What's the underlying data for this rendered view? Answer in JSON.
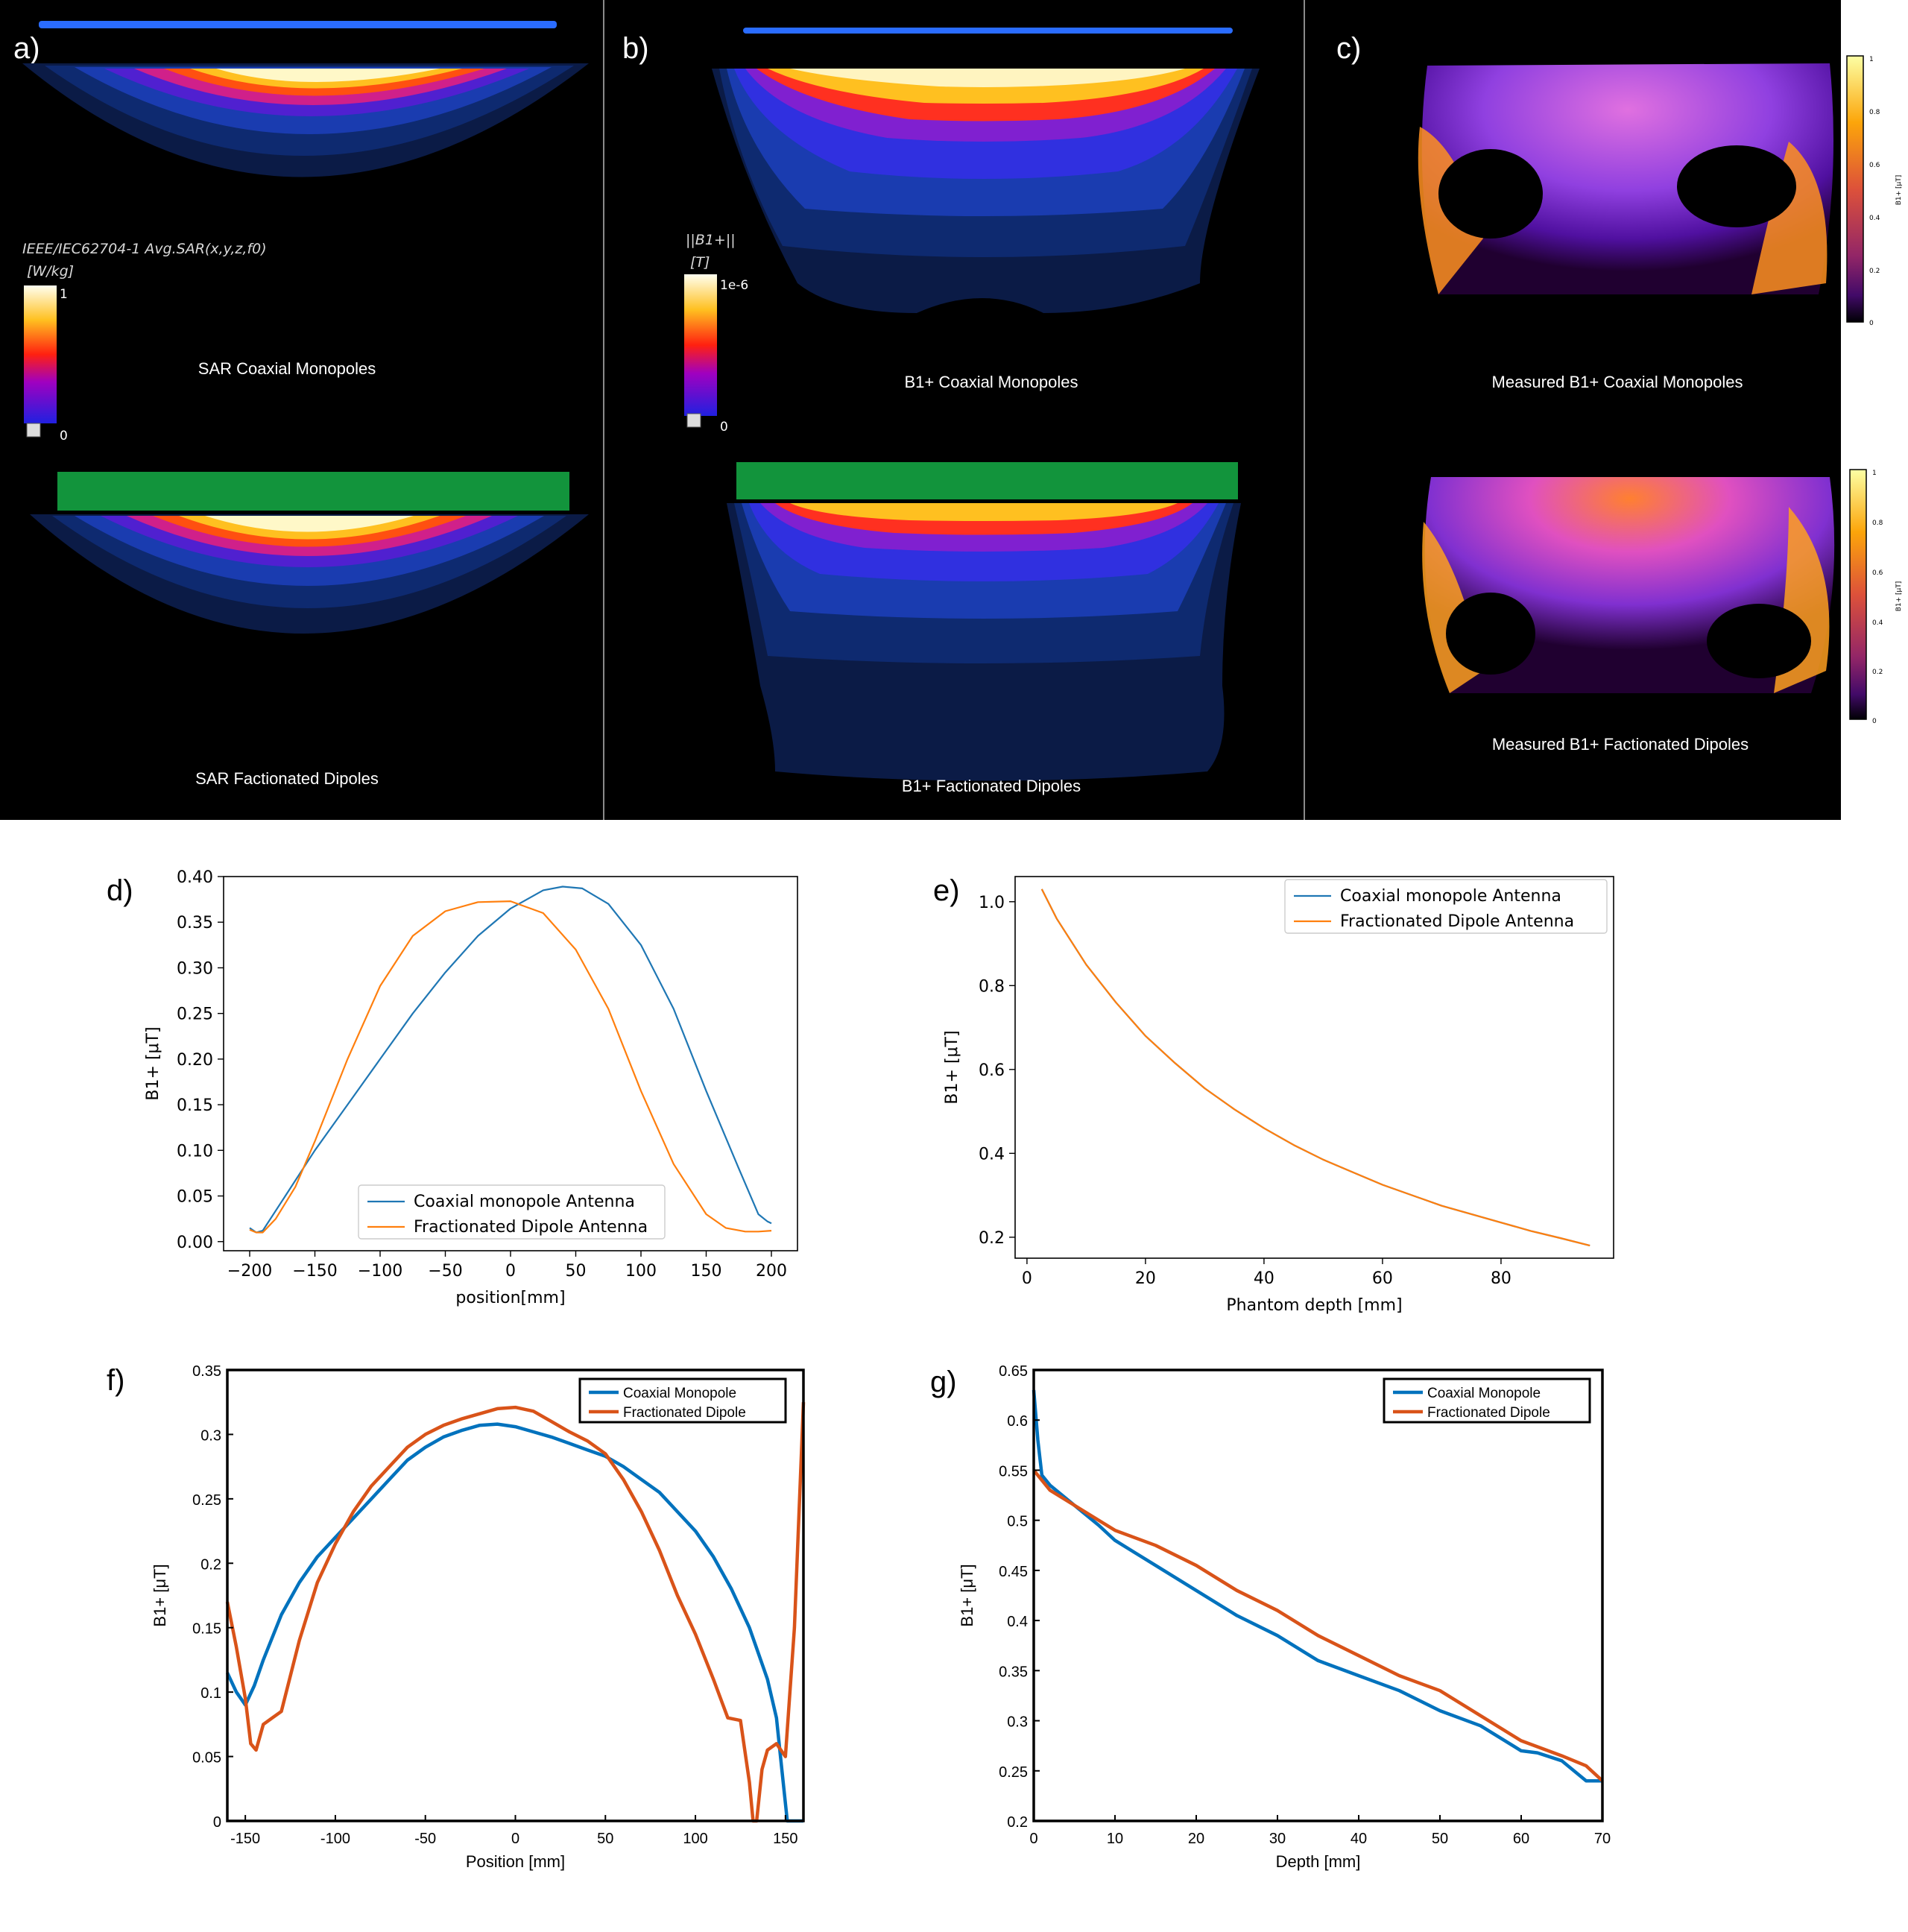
{
  "panels": {
    "a": {
      "label": "a)",
      "legend_title": "IEEE/IEC62704-1 Avg.SAR(x,y,z,f0)",
      "unit": "[W/kg]",
      "scale_max": "1",
      "scale_min": "0",
      "caption_top": "SAR Coaxial Monopoles",
      "caption_bottom": "SAR Factionated Dipoles"
    },
    "b": {
      "label": "b)",
      "legend_title": "||B1+||",
      "unit": "[T]",
      "scale_max": "1e-6",
      "scale_min": "0",
      "caption_top": "B1+ Coaxial Monopoles",
      "caption_bottom": "B1+ Factionated Dipoles"
    },
    "c": {
      "label": "c)",
      "caption_top": "Measured B1+ Coaxial Monopoles",
      "caption_bottom": "Measured B1+ Factionated Dipoles",
      "colorbar_ticks": [
        "1",
        "0.8",
        "0.6",
        "0.4",
        "0.2",
        "0"
      ],
      "colorbar_label": "B1+ [μT]"
    },
    "d": {
      "label": "d)"
    },
    "e": {
      "label": "e)"
    },
    "f": {
      "label": "f)"
    },
    "g": {
      "label": "g)"
    }
  },
  "colors": {
    "blue": "#1f77b4",
    "orange": "#ff7f0e",
    "matlab_blue": "#0072bd",
    "matlab_orange": "#d95319"
  },
  "chart_data": [
    {
      "id": "d",
      "type": "line",
      "xlabel": "position[mm]",
      "ylabel": "B1+ [μT]",
      "xlim": [
        -220,
        220
      ],
      "ylim": [
        -0.01,
        0.4
      ],
      "xticks": [
        -200,
        -150,
        -100,
        -50,
        0,
        50,
        100,
        150,
        200
      ],
      "xticklabels": [
        "−200",
        "−150",
        "−100",
        "−50",
        "0",
        "50",
        "100",
        "150",
        "200"
      ],
      "yticks": [
        0.0,
        0.05,
        0.1,
        0.15,
        0.2,
        0.25,
        0.3,
        0.35,
        0.4
      ],
      "yticklabels": [
        "0.00",
        "0.05",
        "0.10",
        "0.15",
        "0.20",
        "0.25",
        "0.30",
        "0.35",
        "0.40"
      ],
      "legend": "lower-center",
      "series": [
        {
          "name": "Coaxial monopole Antenna",
          "x": [
            -200,
            -195,
            -190,
            -175,
            -150,
            -125,
            -100,
            -75,
            -50,
            -25,
            0,
            25,
            40,
            55,
            75,
            100,
            125,
            150,
            175,
            190,
            197,
            200
          ],
          "y": [
            0.015,
            0.01,
            0.012,
            0.045,
            0.1,
            0.15,
            0.2,
            0.25,
            0.295,
            0.335,
            0.365,
            0.385,
            0.389,
            0.387,
            0.37,
            0.325,
            0.255,
            0.165,
            0.08,
            0.03,
            0.022,
            0.02
          ]
        },
        {
          "name": "Fractionated Dipole Antenna",
          "x": [
            -200,
            -195,
            -190,
            -180,
            -165,
            -150,
            -125,
            -100,
            -75,
            -50,
            -25,
            0,
            25,
            50,
            75,
            100,
            125,
            150,
            165,
            180,
            190,
            200
          ],
          "y": [
            0.013,
            0.01,
            0.01,
            0.025,
            0.06,
            0.11,
            0.2,
            0.28,
            0.335,
            0.362,
            0.372,
            0.373,
            0.36,
            0.32,
            0.255,
            0.165,
            0.085,
            0.03,
            0.015,
            0.011,
            0.011,
            0.012
          ]
        }
      ]
    },
    {
      "id": "e",
      "type": "line",
      "xlabel": "Phantom depth [mm]",
      "ylabel": "B1+ [μT]",
      "xlim": [
        -2,
        99
      ],
      "ylim": [
        0.15,
        1.06
      ],
      "xticks": [
        0,
        20,
        40,
        60,
        80
      ],
      "xticklabels": [
        "0",
        "20",
        "40",
        "60",
        "80"
      ],
      "yticks": [
        0.2,
        0.4,
        0.6,
        0.8,
        1.0
      ],
      "yticklabels": [
        "0.2",
        "0.4",
        "0.6",
        "0.8",
        "1.0"
      ],
      "legend": "top-right",
      "series": [
        {
          "name": "Coaxial monopole Antenna",
          "x": [
            2.5,
            5,
            10,
            15,
            20,
            25,
            30,
            35,
            40,
            45,
            50,
            55,
            60,
            65,
            70,
            75,
            80,
            85,
            90,
            95
          ],
          "y": [
            1.03,
            0.96,
            0.85,
            0.76,
            0.68,
            0.615,
            0.555,
            0.505,
            0.46,
            0.42,
            0.385,
            0.355,
            0.325,
            0.3,
            0.275,
            0.255,
            0.235,
            0.215,
            0.198,
            0.18
          ]
        },
        {
          "name": "Fractionated Dipole Antenna",
          "x": [
            2.5,
            5,
            10,
            15,
            20,
            25,
            30,
            35,
            40,
            45,
            50,
            55,
            60,
            65,
            70,
            75,
            80,
            85,
            90,
            95
          ],
          "y": [
            1.03,
            0.96,
            0.85,
            0.76,
            0.68,
            0.615,
            0.555,
            0.505,
            0.46,
            0.42,
            0.385,
            0.355,
            0.325,
            0.3,
            0.275,
            0.255,
            0.235,
            0.215,
            0.198,
            0.18
          ]
        }
      ]
    },
    {
      "id": "f",
      "type": "line",
      "xlabel": "Position [mm]",
      "ylabel": "B1+ [μT]",
      "xlim": [
        -160,
        160
      ],
      "ylim": [
        0,
        0.35
      ],
      "xticks": [
        -150,
        -100,
        -50,
        0,
        50,
        100,
        150
      ],
      "xticklabels": [
        "-150",
        "-100",
        "-50",
        "0",
        "50",
        "100",
        "150"
      ],
      "yticks": [
        0,
        0.05,
        0.1,
        0.15,
        0.2,
        0.25,
        0.3,
        0.35
      ],
      "yticklabels": [
        "0",
        "0.05",
        "0.1",
        "0.15",
        "0.2",
        "0.25",
        "0.3",
        "0.35"
      ],
      "legend": "top-right",
      "series": [
        {
          "name": "Coaxial Monopole",
          "x": [
            -160,
            -155,
            -150,
            -145,
            -140,
            -130,
            -120,
            -110,
            -100,
            -90,
            -80,
            -70,
            -60,
            -50,
            -40,
            -30,
            -20,
            -10,
            0,
            10,
            20,
            30,
            40,
            50,
            60,
            70,
            80,
            90,
            100,
            110,
            120,
            130,
            140,
            145,
            148,
            151,
            155,
            160
          ],
          "y": [
            0.115,
            0.1,
            0.09,
            0.105,
            0.125,
            0.16,
            0.185,
            0.205,
            0.22,
            0.235,
            0.25,
            0.265,
            0.28,
            0.29,
            0.298,
            0.303,
            0.307,
            0.308,
            0.306,
            0.302,
            0.298,
            0.293,
            0.288,
            0.283,
            0.275,
            0.265,
            0.255,
            0.24,
            0.225,
            0.205,
            0.18,
            0.15,
            0.11,
            0.08,
            0.04,
            0.0,
            0.0,
            0.0
          ]
        },
        {
          "name": "Fractionated Dipole",
          "x": [
            -160,
            -155,
            -150,
            -147,
            -144,
            -140,
            -135,
            -130,
            -120,
            -110,
            -100,
            -90,
            -80,
            -70,
            -60,
            -50,
            -40,
            -30,
            -20,
            -10,
            0,
            10,
            20,
            30,
            40,
            50,
            60,
            70,
            80,
            90,
            100,
            110,
            118,
            125,
            130,
            132,
            134,
            137,
            140,
            145,
            150,
            155,
            160
          ],
          "y": [
            0.17,
            0.135,
            0.095,
            0.06,
            0.055,
            0.075,
            0.08,
            0.085,
            0.14,
            0.185,
            0.215,
            0.24,
            0.26,
            0.275,
            0.29,
            0.3,
            0.307,
            0.312,
            0.316,
            0.32,
            0.321,
            0.318,
            0.31,
            0.302,
            0.295,
            0.285,
            0.265,
            0.24,
            0.21,
            0.175,
            0.145,
            0.11,
            0.08,
            0.078,
            0.03,
            0.0,
            0.0,
            0.04,
            0.055,
            0.06,
            0.05,
            0.15,
            0.325
          ]
        }
      ]
    },
    {
      "id": "g",
      "type": "line",
      "xlabel": "Depth [mm]",
      "ylabel": "B1+ [μT]",
      "xlim": [
        0,
        70
      ],
      "ylim": [
        0.2,
        0.65
      ],
      "xticks": [
        0,
        10,
        20,
        30,
        40,
        50,
        60,
        70
      ],
      "xticklabels": [
        "0",
        "10",
        "20",
        "30",
        "40",
        "50",
        "60",
        "70"
      ],
      "yticks": [
        0.2,
        0.25,
        0.3,
        0.35,
        0.4,
        0.45,
        0.5,
        0.55,
        0.6,
        0.65
      ],
      "yticklabels": [
        "0.2",
        "0.25",
        "0.3",
        "0.35",
        "0.4",
        "0.45",
        "0.5",
        "0.55",
        "0.6",
        "0.65"
      ],
      "legend": "top-right",
      "series": [
        {
          "name": "Coaxial Monopole",
          "x": [
            0,
            0.5,
            1,
            2,
            5,
            8,
            10,
            15,
            20,
            25,
            30,
            35,
            40,
            45,
            50,
            55,
            58,
            60,
            62,
            65,
            68,
            70
          ],
          "y": [
            0.63,
            0.58,
            0.545,
            0.535,
            0.515,
            0.495,
            0.48,
            0.455,
            0.43,
            0.405,
            0.385,
            0.36,
            0.345,
            0.33,
            0.31,
            0.295,
            0.28,
            0.27,
            0.268,
            0.26,
            0.24,
            0.24
          ]
        },
        {
          "name": "Fractionated Dipole",
          "x": [
            0,
            1,
            2,
            5,
            8,
            10,
            15,
            20,
            25,
            30,
            35,
            40,
            45,
            50,
            55,
            60,
            65,
            68,
            70
          ],
          "y": [
            0.55,
            0.54,
            0.53,
            0.515,
            0.5,
            0.49,
            0.475,
            0.455,
            0.43,
            0.41,
            0.385,
            0.365,
            0.345,
            0.33,
            0.305,
            0.28,
            0.265,
            0.255,
            0.24
          ]
        }
      ]
    }
  ]
}
